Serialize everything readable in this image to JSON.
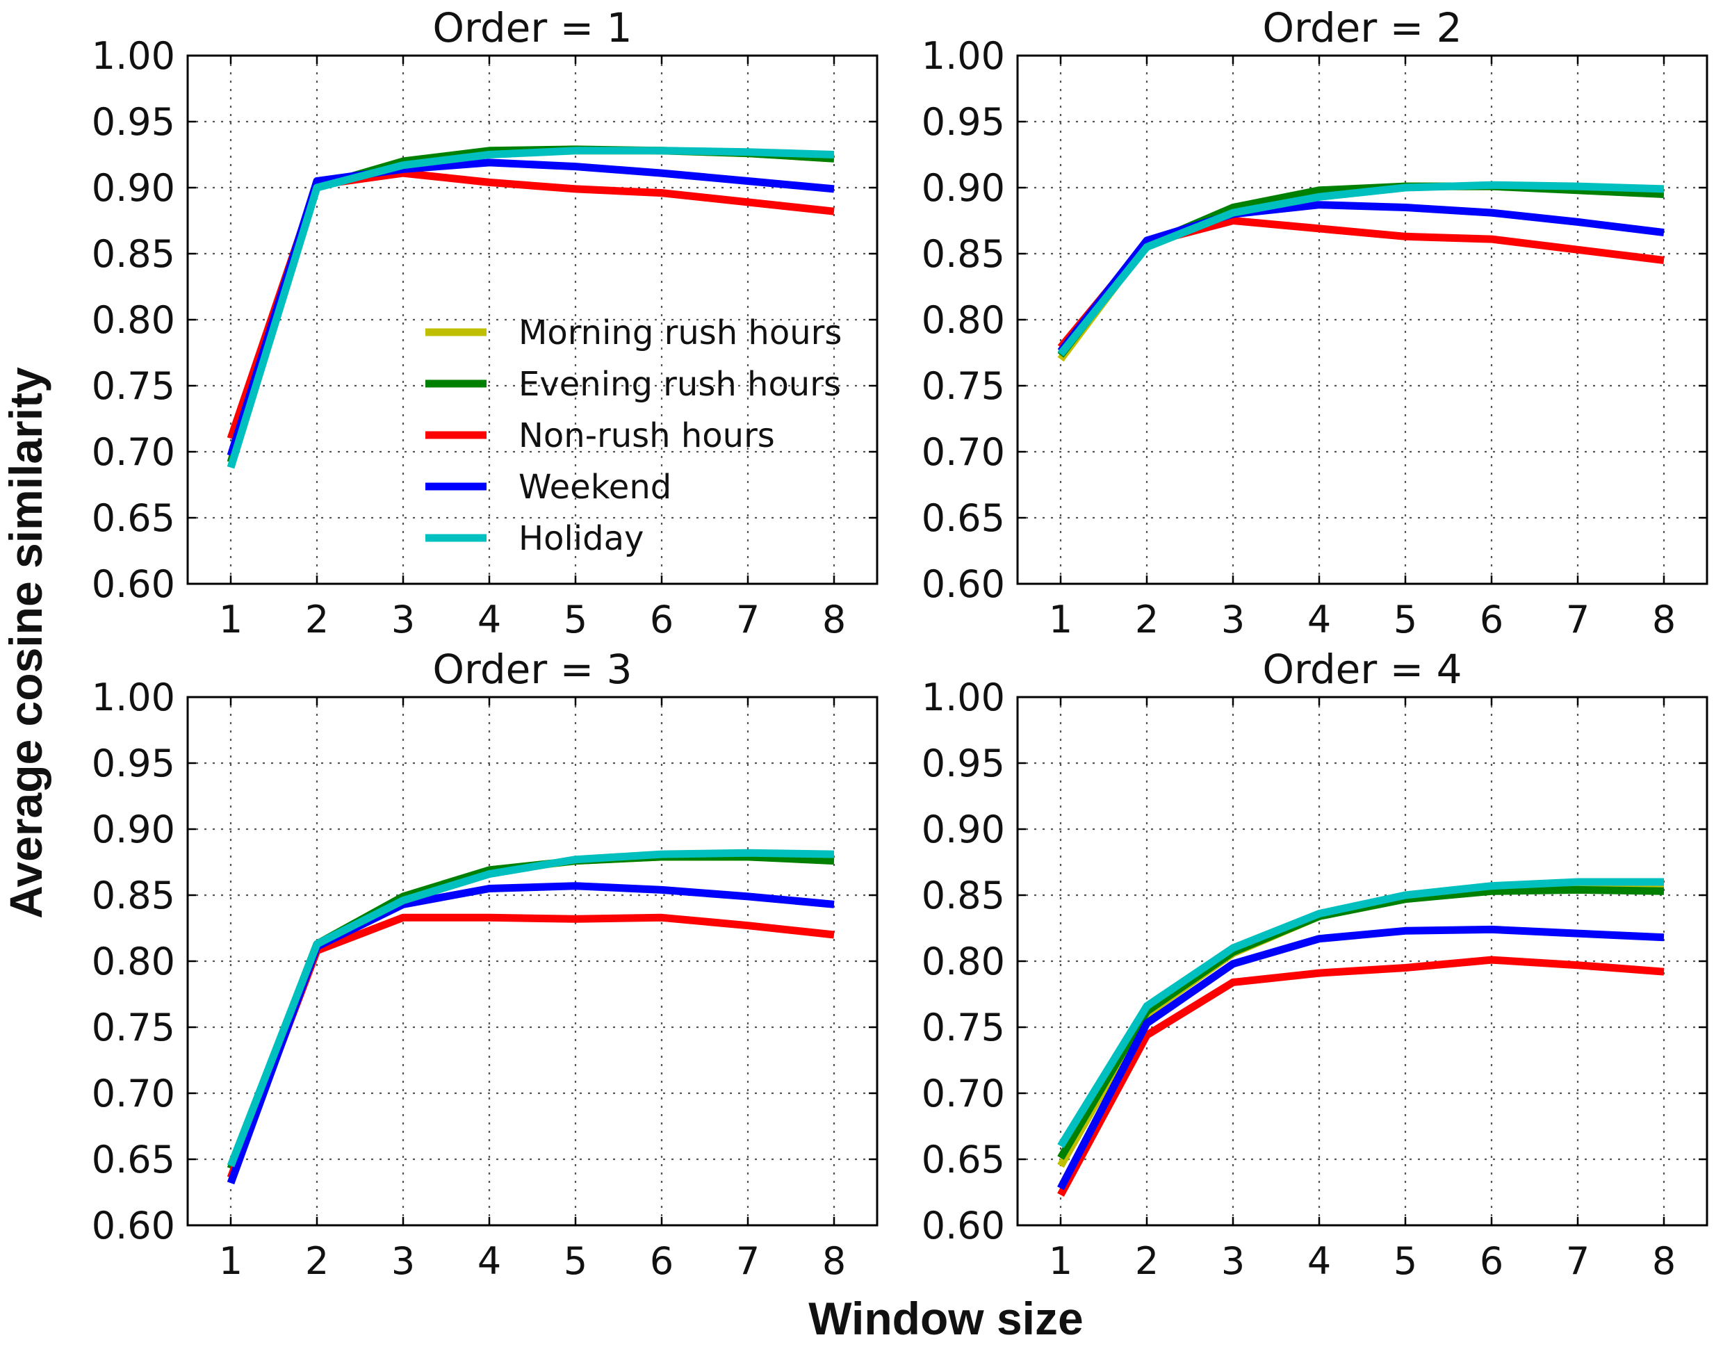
{
  "figure": {
    "xlabel": "Window size",
    "ylabel": "Average cosine similarity"
  },
  "chart_data": [
    {
      "type": "line",
      "title": "Order = 1",
      "x": [
        1,
        2,
        3,
        4,
        5,
        6,
        7,
        8
      ],
      "xlim": [
        0.5,
        8.5
      ],
      "ylim": [
        0.6,
        1.0
      ],
      "xticks": [
        "1",
        "2",
        "3",
        "4",
        "5",
        "6",
        "7",
        "8"
      ],
      "yticks": [
        "0.60",
        "0.65",
        "0.70",
        "0.75",
        "0.80",
        "0.85",
        "0.90",
        "0.95",
        "1.00"
      ],
      "grid": true,
      "legend": "center",
      "series": [
        {
          "name": "Morning rush hours",
          "color": "#bfbf00",
          "values": [
            0.692,
            0.901,
            0.919,
            0.927,
            0.928,
            0.928,
            0.926,
            0.922
          ]
        },
        {
          "name": "Evening rush hours",
          "color": "#008000",
          "values": [
            0.692,
            0.901,
            0.92,
            0.928,
            0.929,
            0.928,
            0.926,
            0.922
          ]
        },
        {
          "name": "Non-rush hours",
          "color": "#ff0000",
          "values": [
            0.71,
            0.902,
            0.911,
            0.904,
            0.899,
            0.896,
            0.889,
            0.882
          ]
        },
        {
          "name": "Weekend",
          "color": "#0000ff",
          "values": [
            0.697,
            0.905,
            0.914,
            0.919,
            0.916,
            0.911,
            0.905,
            0.899
          ]
        },
        {
          "name": "Holiday",
          "color": "#00bfbf",
          "values": [
            0.688,
            0.9,
            0.917,
            0.925,
            0.928,
            0.928,
            0.927,
            0.925
          ]
        }
      ]
    },
    {
      "type": "line",
      "title": "Order = 2",
      "x": [
        1,
        2,
        3,
        4,
        5,
        6,
        7,
        8
      ],
      "xlim": [
        0.5,
        8.5
      ],
      "ylim": [
        0.6,
        1.0
      ],
      "xticks": [
        "1",
        "2",
        "3",
        "4",
        "5",
        "6",
        "7",
        "8"
      ],
      "yticks": [
        "0.60",
        "0.65",
        "0.70",
        "0.75",
        "0.80",
        "0.85",
        "0.90",
        "0.95",
        "1.00"
      ],
      "grid": true,
      "series": [
        {
          "name": "Morning rush hours",
          "color": "#bfbf00",
          "values": [
            0.77,
            0.857,
            0.883,
            0.897,
            0.901,
            0.901,
            0.899,
            0.897
          ]
        },
        {
          "name": "Evening rush hours",
          "color": "#008000",
          "values": [
            0.773,
            0.857,
            0.885,
            0.898,
            0.901,
            0.901,
            0.898,
            0.895
          ]
        },
        {
          "name": "Non-rush hours",
          "color": "#ff0000",
          "values": [
            0.779,
            0.858,
            0.875,
            0.869,
            0.863,
            0.861,
            0.853,
            0.845
          ]
        },
        {
          "name": "Weekend",
          "color": "#0000ff",
          "values": [
            0.776,
            0.86,
            0.88,
            0.887,
            0.885,
            0.881,
            0.874,
            0.866
          ]
        },
        {
          "name": "Holiday",
          "color": "#00bfbf",
          "values": [
            0.774,
            0.855,
            0.881,
            0.893,
            0.9,
            0.902,
            0.901,
            0.899
          ]
        }
      ]
    },
    {
      "type": "line",
      "title": "Order = 3",
      "x": [
        1,
        2,
        3,
        4,
        5,
        6,
        7,
        8
      ],
      "xlim": [
        0.5,
        8.5
      ],
      "ylim": [
        0.6,
        1.0
      ],
      "xticks": [
        "1",
        "2",
        "3",
        "4",
        "5",
        "6",
        "7",
        "8"
      ],
      "yticks": [
        "0.60",
        "0.65",
        "0.70",
        "0.75",
        "0.80",
        "0.85",
        "0.90",
        "0.95",
        "1.00"
      ],
      "grid": true,
      "series": [
        {
          "name": "Morning rush hours",
          "color": "#bfbf00",
          "values": [
            0.643,
            0.813,
            0.848,
            0.868,
            0.876,
            0.879,
            0.879,
            0.877
          ]
        },
        {
          "name": "Evening rush hours",
          "color": "#008000",
          "values": [
            0.643,
            0.813,
            0.849,
            0.869,
            0.876,
            0.879,
            0.879,
            0.876
          ]
        },
        {
          "name": "Non-rush hours",
          "color": "#ff0000",
          "values": [
            0.636,
            0.808,
            0.833,
            0.833,
            0.832,
            0.833,
            0.827,
            0.82
          ]
        },
        {
          "name": "Weekend",
          "color": "#0000ff",
          "values": [
            0.632,
            0.811,
            0.843,
            0.855,
            0.857,
            0.854,
            0.849,
            0.843
          ]
        },
        {
          "name": "Holiday",
          "color": "#00bfbf",
          "values": [
            0.645,
            0.813,
            0.846,
            0.866,
            0.877,
            0.881,
            0.882,
            0.881
          ]
        }
      ]
    },
    {
      "type": "line",
      "title": "Order = 4",
      "x": [
        1,
        2,
        3,
        4,
        5,
        6,
        7,
        8
      ],
      "xlim": [
        0.5,
        8.5
      ],
      "ylim": [
        0.6,
        1.0
      ],
      "xticks": [
        "1",
        "2",
        "3",
        "4",
        "5",
        "6",
        "7",
        "8"
      ],
      "yticks": [
        "0.60",
        "0.65",
        "0.70",
        "0.75",
        "0.80",
        "0.85",
        "0.90",
        "0.95",
        "1.00"
      ],
      "grid": true,
      "series": [
        {
          "name": "Morning rush hours",
          "color": "#bfbf00",
          "values": [
            0.645,
            0.76,
            0.806,
            0.834,
            0.848,
            0.854,
            0.855,
            0.855
          ]
        },
        {
          "name": "Evening rush hours",
          "color": "#008000",
          "values": [
            0.651,
            0.762,
            0.807,
            0.834,
            0.847,
            0.853,
            0.854,
            0.853
          ]
        },
        {
          "name": "Non-rush hours",
          "color": "#ff0000",
          "values": [
            0.623,
            0.744,
            0.784,
            0.791,
            0.795,
            0.801,
            0.797,
            0.792
          ]
        },
        {
          "name": "Weekend",
          "color": "#0000ff",
          "values": [
            0.628,
            0.753,
            0.798,
            0.817,
            0.823,
            0.824,
            0.821,
            0.818
          ]
        },
        {
          "name": "Holiday",
          "color": "#00bfbf",
          "values": [
            0.66,
            0.766,
            0.81,
            0.836,
            0.85,
            0.857,
            0.86,
            0.86
          ]
        }
      ]
    }
  ]
}
